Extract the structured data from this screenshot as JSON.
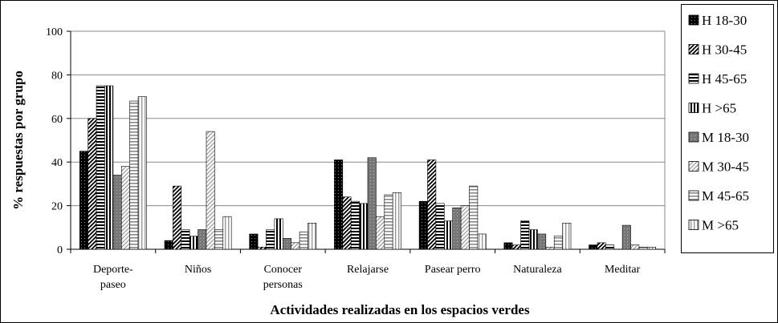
{
  "chart_data": {
    "type": "bar",
    "x_label": "Actividades realizadas en los espacios verdes",
    "y_label": "% respuestas por grupo",
    "categories": [
      "Deporte-\npaseo",
      "Niños",
      "Conocer\npersonas",
      "Relajarse",
      "Pasear perro",
      "Naturaleza",
      "Meditar"
    ],
    "series": [
      {
        "name": "H 18-30",
        "color": "#000000",
        "values": [
          45,
          4,
          7,
          41,
          22,
          3,
          2
        ]
      },
      {
        "name": "H 30-45",
        "color": "#000000",
        "values": [
          60,
          29,
          1,
          24,
          41,
          2,
          3
        ]
      },
      {
        "name": "H 45-65",
        "color": "#000000",
        "values": [
          75,
          9,
          9,
          22,
          21,
          13,
          2
        ]
      },
      {
        "name": "H >65",
        "color": "#000000",
        "values": [
          75,
          6,
          14,
          21,
          13,
          9,
          0
        ]
      },
      {
        "name": "M 18-30",
        "color": "#777777",
        "values": [
          34,
          9,
          5,
          42,
          19,
          7,
          11
        ]
      },
      {
        "name": "M 30-45",
        "color": "#999999",
        "values": [
          38,
          54,
          3,
          15,
          20,
          1,
          2
        ]
      },
      {
        "name": "M 45-65",
        "color": "#888888",
        "values": [
          68,
          9,
          8,
          25,
          29,
          6,
          1
        ]
      },
      {
        "name": "M >65",
        "color": "#999999",
        "values": [
          70,
          15,
          12,
          26,
          7,
          12,
          1
        ]
      }
    ],
    "ylim": [
      0,
      100
    ],
    "yticks": [
      0,
      20,
      40,
      60,
      80,
      100
    ],
    "grid": true,
    "legend": "right"
  }
}
